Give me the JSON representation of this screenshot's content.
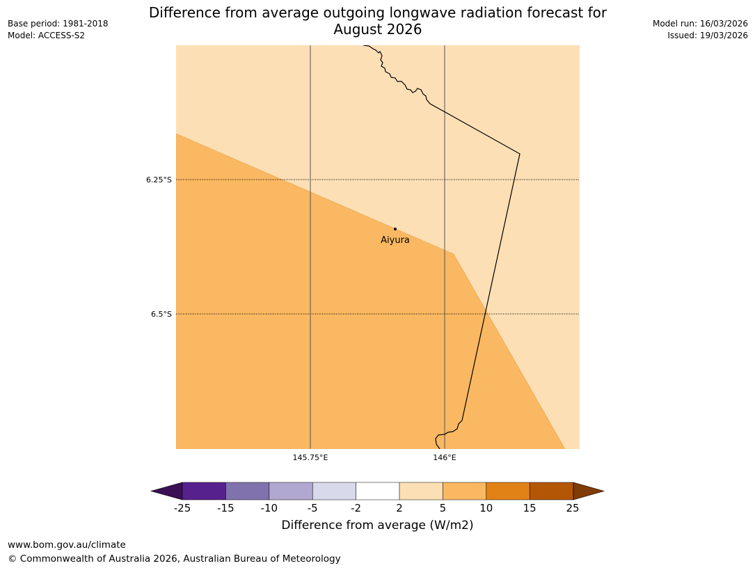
{
  "header": {
    "title_line1": "Difference from average outgoing longwave radiation forecast for",
    "title_line2": "August 2026",
    "base_period": "Base period: 1981-2018",
    "model": "Model: ACCESS-S2",
    "model_run": "Model run: 16/03/2026",
    "issued": "Issued: 19/03/2026"
  },
  "map": {
    "lat_labels": [
      "6.25°S",
      "6.5°S"
    ],
    "lon_labels": [
      "145.75°E",
      "146°E"
    ],
    "place": {
      "name": "Aiyura",
      "icon": "location-dot-icon"
    },
    "colors": {
      "light_band": "#fddfb5",
      "mid_band": "#fab862",
      "coast": "#000000",
      "grid": "#555555"
    }
  },
  "legend": {
    "title": "Difference from average (W/m2)",
    "ticks": [
      "-25",
      "-15",
      "-10",
      "-5",
      "-2",
      "2",
      "5",
      "10",
      "15",
      "25"
    ],
    "colors": [
      "#3b0f54",
      "#56218d",
      "#8073ad",
      "#b1a8d1",
      "#d8d9ea",
      "#ffffff",
      "#fddfb5",
      "#fab862",
      "#e18217",
      "#b35707",
      "#7f3b08"
    ]
  },
  "footer": {
    "url": "www.bom.gov.au/climate",
    "copyright": "© Commonwealth of Australia 2026, Australian Bureau of Meteorology"
  }
}
